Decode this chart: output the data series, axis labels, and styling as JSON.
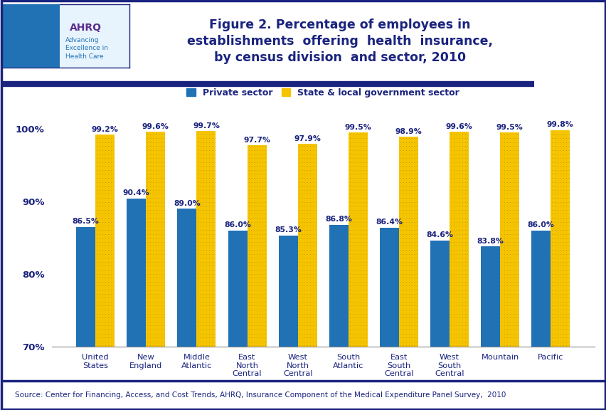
{
  "categories": [
    "United\nStates",
    "New\nEngland",
    "Middle\nAtlantic",
    "East\nNorth\nCentral",
    "West\nNorth\nCentral",
    "South\nAtlantic",
    "East\nSouth\nCentral",
    "West\nSouth\nCentral",
    "Mountain",
    "Pacific"
  ],
  "private_values": [
    86.5,
    90.4,
    89.0,
    86.0,
    85.3,
    86.8,
    86.4,
    84.6,
    83.8,
    86.0
  ],
  "govt_values": [
    99.2,
    99.6,
    99.7,
    97.7,
    97.9,
    99.5,
    98.9,
    99.6,
    99.5,
    99.8
  ],
  "private_color": "#2171B5",
  "govt_color": "#F5C400",
  "title_line1": "Figure 2. Percentage of employees in",
  "title_line2": "establishments  offering  health  insurance,",
  "title_line3": "by census division  and sector, 2010",
  "title_color": "#1A237E",
  "ylim": [
    70,
    102.5
  ],
  "yticks": [
    70,
    80,
    90,
    100
  ],
  "ytick_labels": [
    "70%",
    "80%",
    "90%",
    "100%"
  ],
  "legend_private": "Private sector",
  "legend_govt": "State & local government sector",
  "source_text": "Source: Center for Financing, Access, and Cost Trends, AHRQ, Insurance Component of the Medical Expenditure Panel Survey,  2010",
  "bg_color": "#FFFFFF",
  "bar_label_fontsize": 7.8,
  "label_color": "#1A237E",
  "title_fontsize": 12.5,
  "outer_border_color": "#1A237E",
  "divider_color": "#1A237E",
  "header_bg": "#FFFFFF"
}
